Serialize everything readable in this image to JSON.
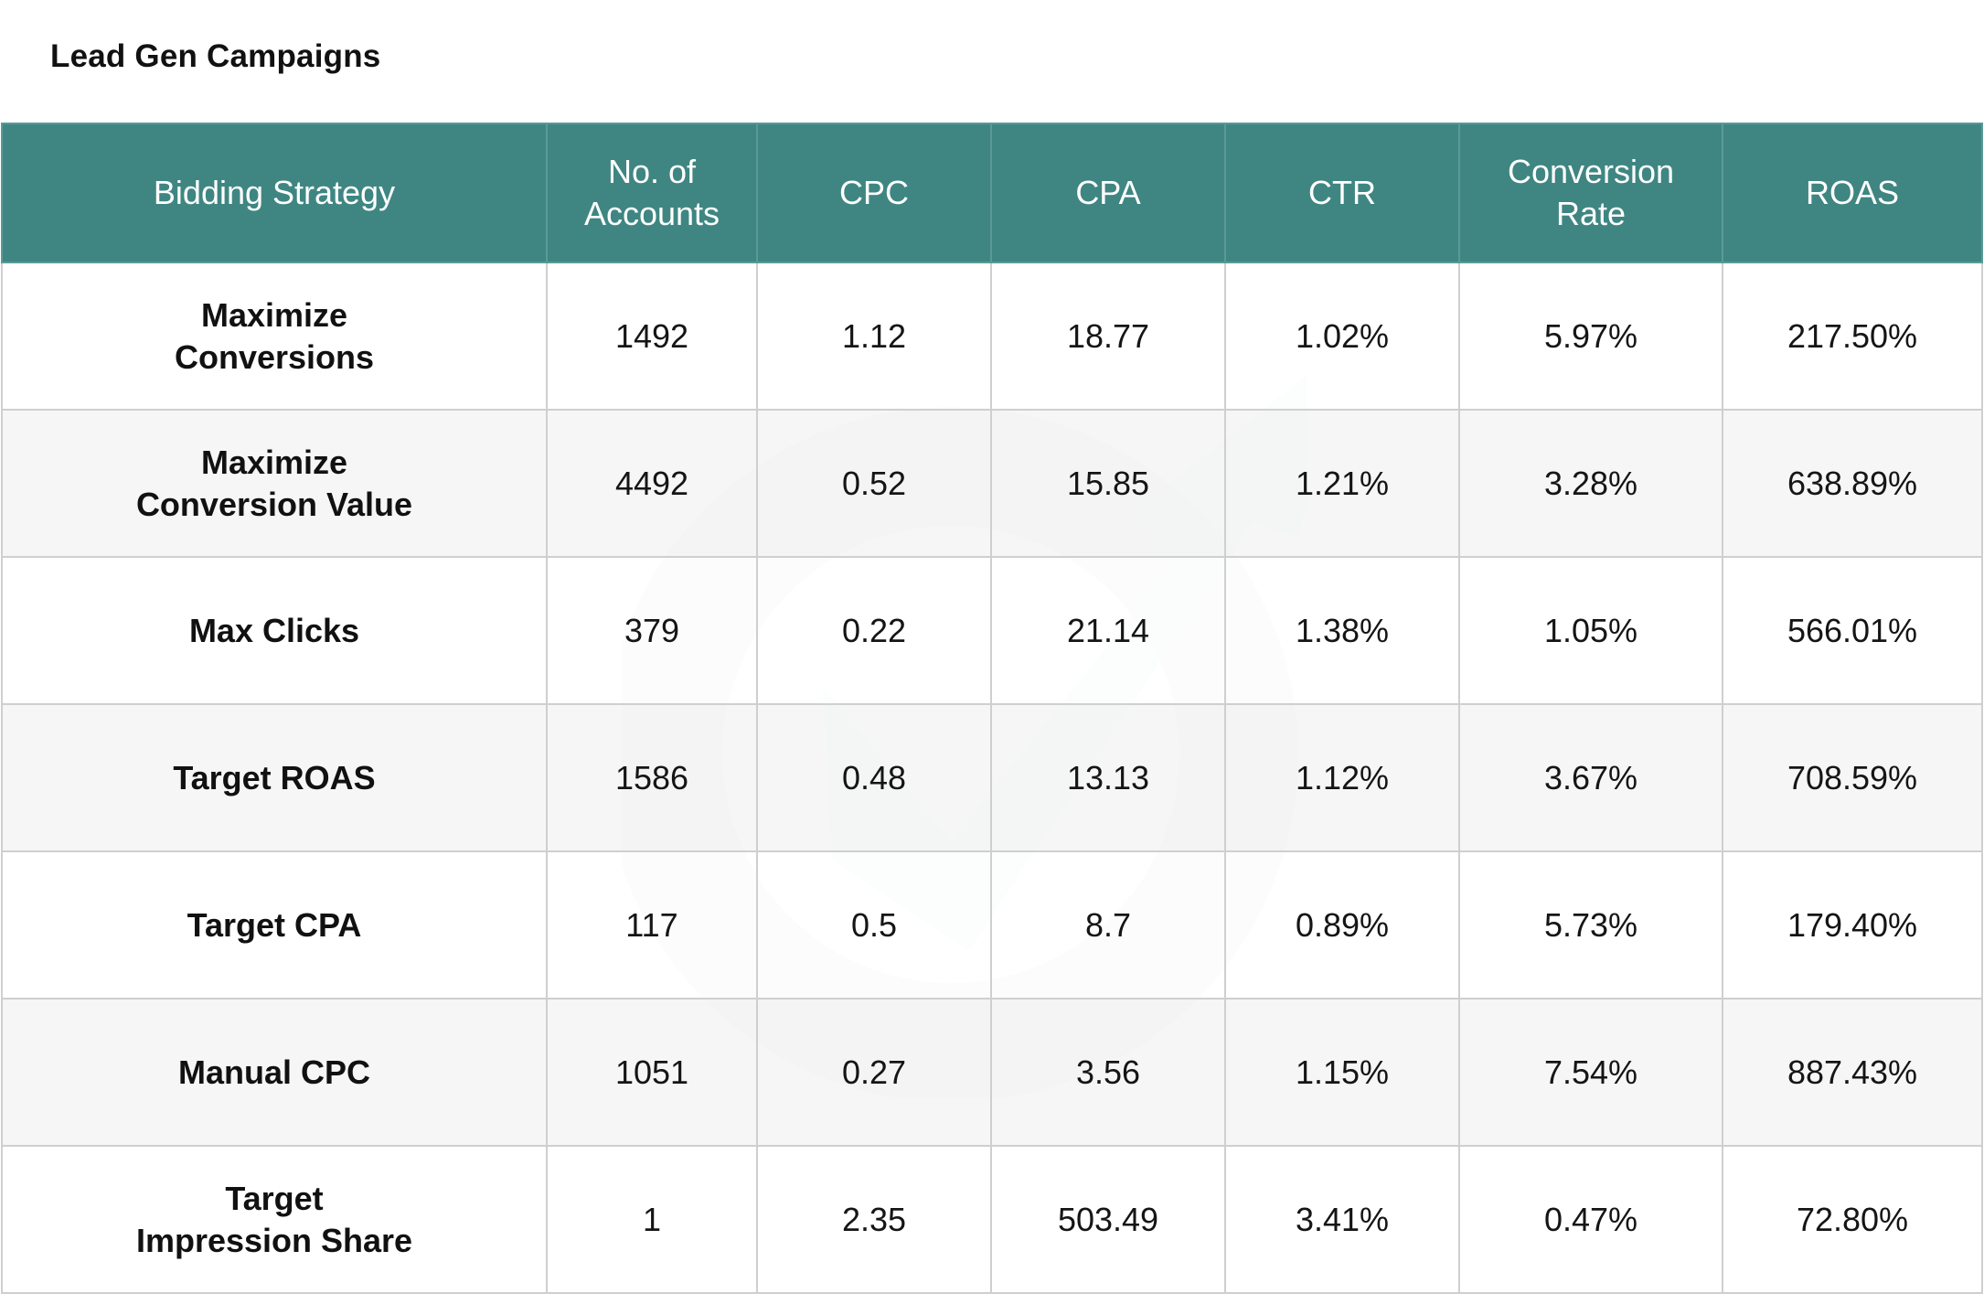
{
  "page": {
    "title": "Lead Gen Campaigns"
  },
  "table": {
    "headers": [
      "Bidding Strategy",
      "No. of\nAccounts",
      "CPC",
      "CPA",
      "CTR",
      "Conversion\nRate",
      "ROAS"
    ],
    "rows": [
      [
        "Maximize\nConversions",
        "1492",
        "1.12",
        "18.77",
        "1.02%",
        "5.97%",
        "217.50%"
      ],
      [
        "Maximize\nConversion Value",
        "4492",
        "0.52",
        "15.85",
        "1.21%",
        "3.28%",
        "638.89%"
      ],
      [
        "Max Clicks",
        "379",
        "0.22",
        "21.14",
        "1.38%",
        "1.05%",
        "566.01%"
      ],
      [
        "Target ROAS",
        "1586",
        "0.48",
        "13.13",
        "1.12%",
        "3.67%",
        "708.59%"
      ],
      [
        "Target CPA",
        "117",
        "0.5",
        "8.7",
        "0.89%",
        "5.73%",
        "179.40%"
      ],
      [
        "Manual CPC",
        "1051",
        "0.27",
        "3.56",
        "1.15%",
        "7.54%",
        "887.43%"
      ],
      [
        "Target\nImpression Share",
        "1",
        "2.35",
        "503.49",
        "3.41%",
        "0.47%",
        "72.80%"
      ]
    ]
  },
  "colors": {
    "header_background": "#3f8682",
    "header_text": "#ffffff",
    "row_alt_background": "#f4f4f4",
    "border": "#cfcfcf"
  },
  "icons": {
    "watermark": "growth-arrow-logo-icon"
  }
}
